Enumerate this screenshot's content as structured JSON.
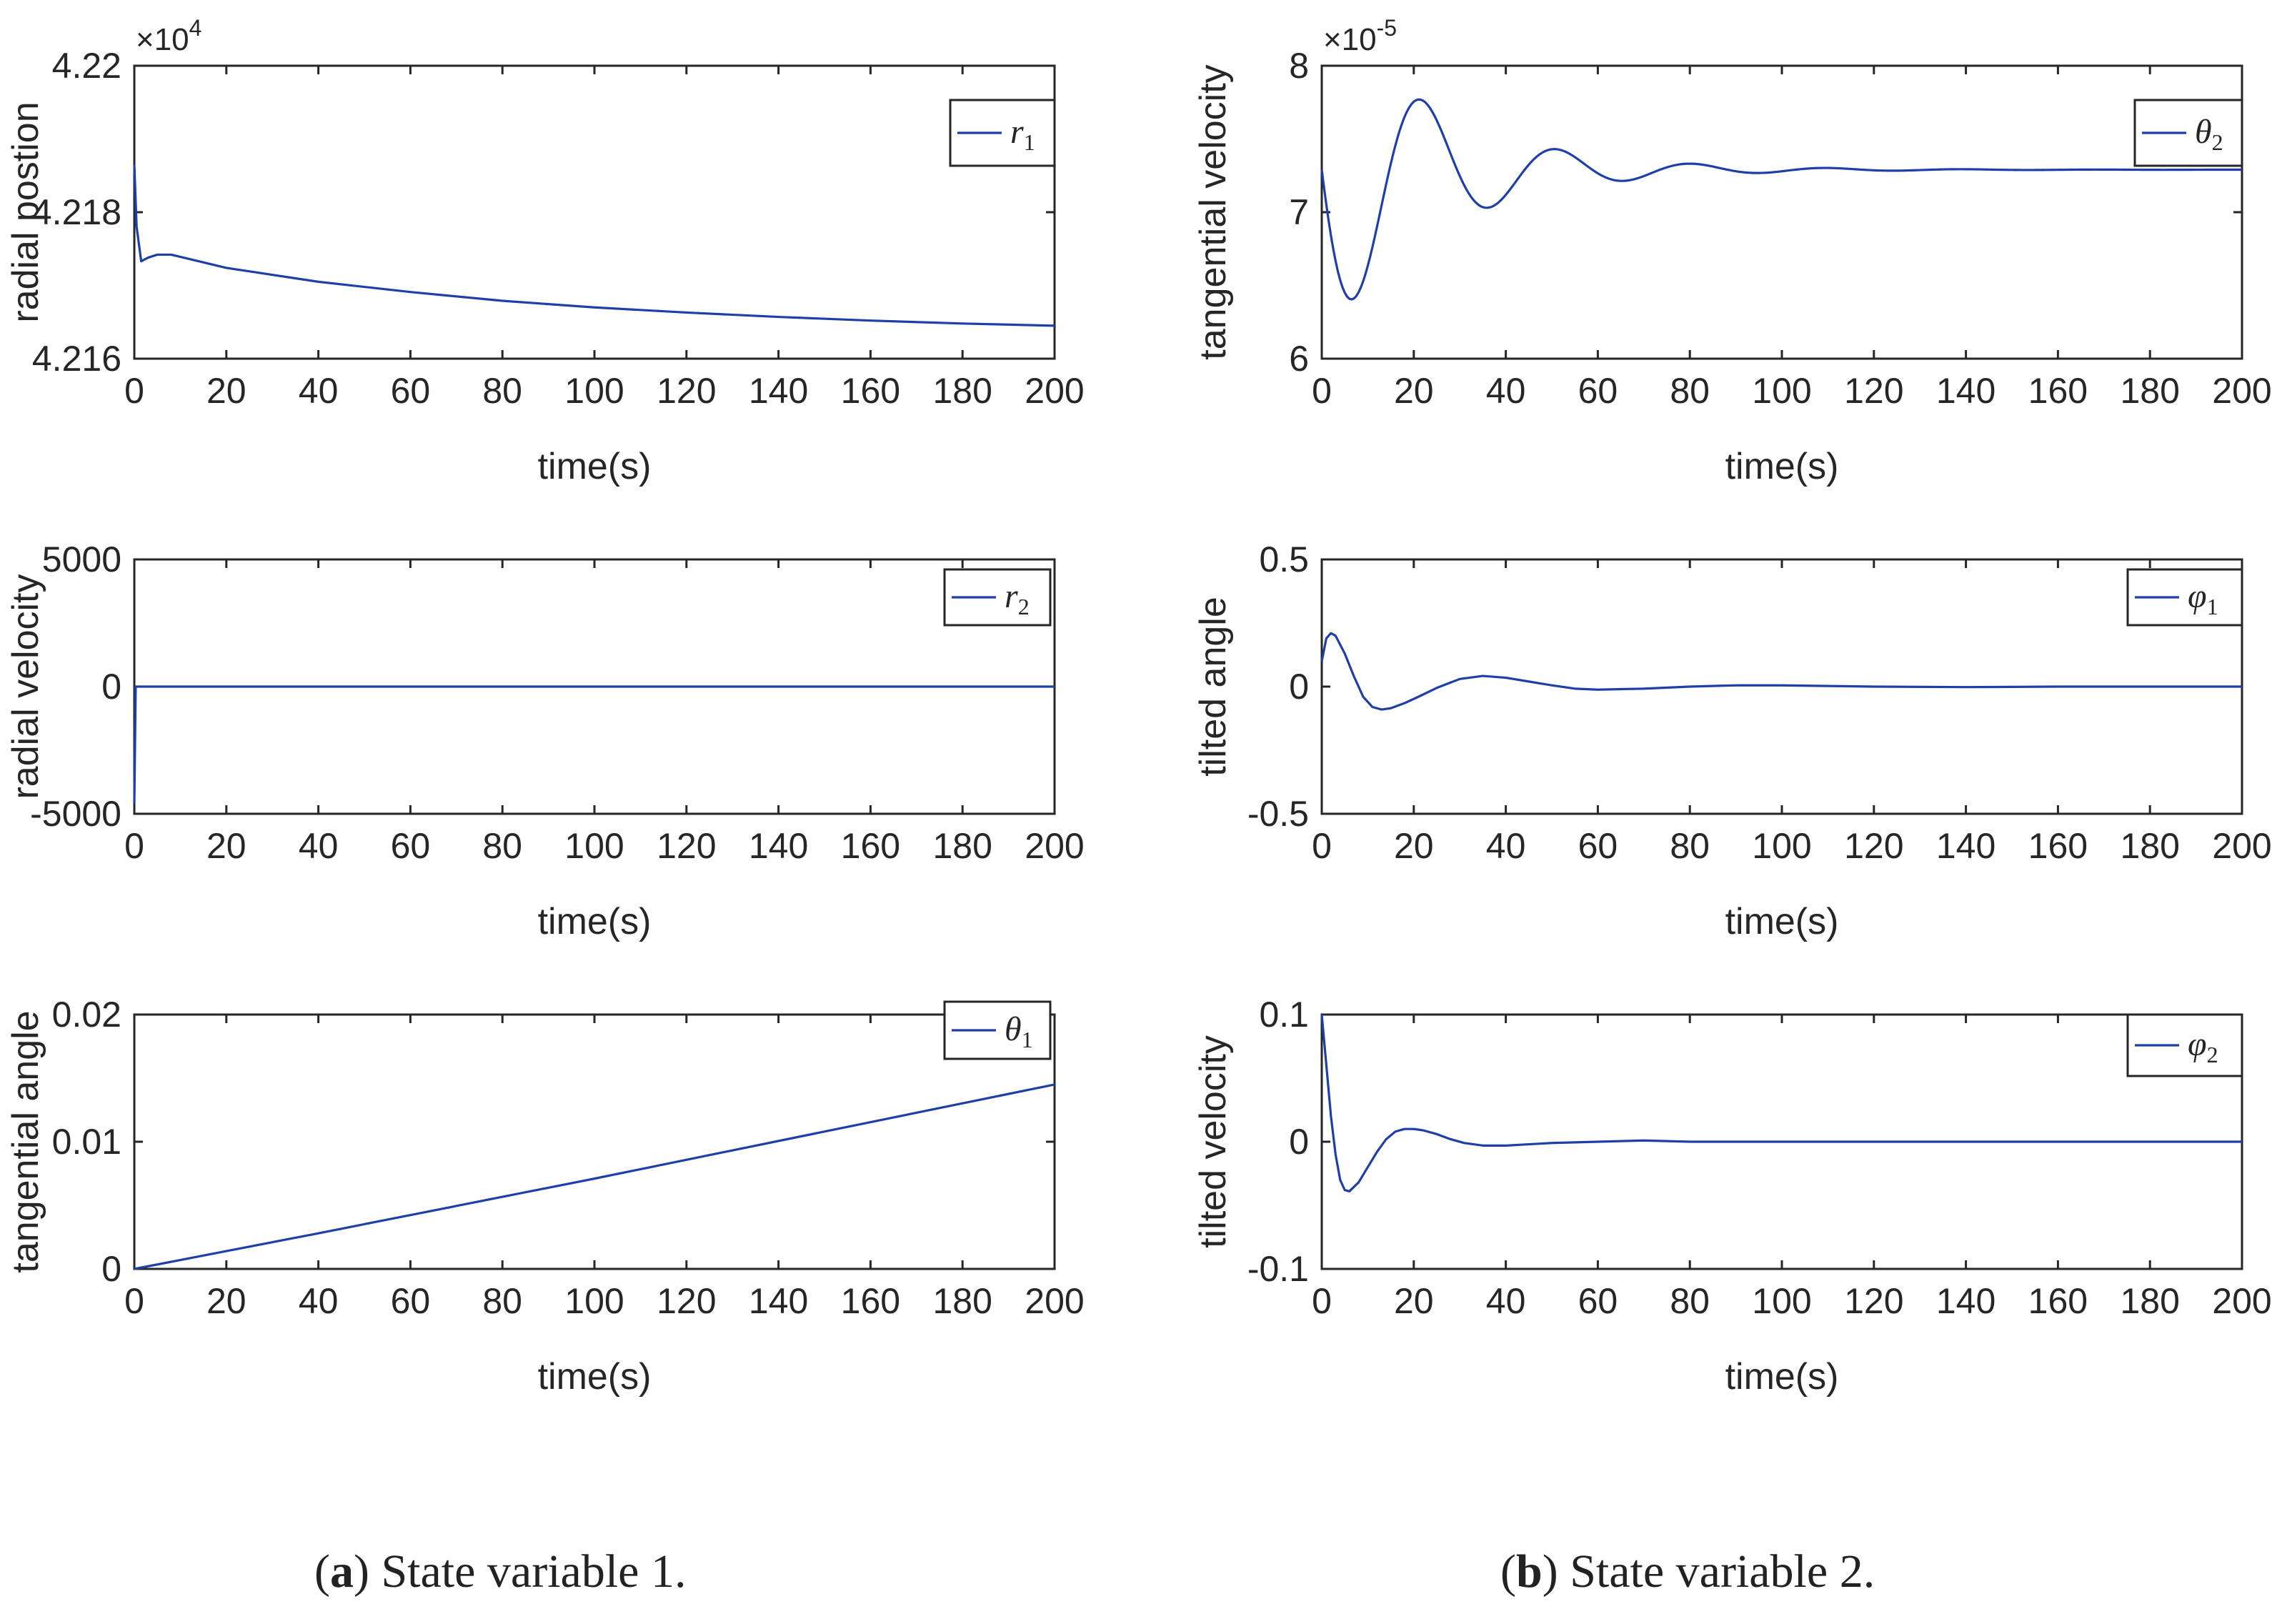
{
  "colors": {
    "line": "#1f3fa8",
    "axis": "#262626"
  },
  "captions": {
    "a": {
      "tag": "a",
      "text": "State variable 1."
    },
    "b": {
      "tag": "b",
      "text": "State variable 2."
    }
  },
  "chart_data": [
    {
      "id": "r1",
      "type": "line",
      "panel": "a-top",
      "xlabel": "time(s)",
      "ylabel": "radial postion",
      "xlim": [
        0,
        200
      ],
      "ylim": [
        4.216,
        4.22
      ],
      "xticks": [
        0,
        20,
        40,
        60,
        80,
        100,
        120,
        140,
        160,
        180,
        200
      ],
      "xtick_labels": [
        "0",
        "20",
        "40",
        "60",
        "80",
        "100",
        "120",
        "140",
        "160",
        "180",
        "200"
      ],
      "yticks": [
        4.216,
        4.218,
        4.22
      ],
      "ytick_labels": [
        "4.216",
        "4.218",
        "4.22"
      ],
      "exponent": {
        "base": "×10",
        "power": "4"
      },
      "legend": {
        "symbol": "r",
        "subscript": "1"
      },
      "series": [
        {
          "name": "r1",
          "x": [
            0,
            0.5,
            1.5,
            3,
            5,
            8,
            12,
            20,
            40,
            60,
            80,
            100,
            120,
            140,
            160,
            180,
            200
          ],
          "y": [
            4.21865,
            4.2178,
            4.21733,
            4.21738,
            4.21742,
            4.21742,
            4.21736,
            4.21724,
            4.21705,
            4.21691,
            4.21679,
            4.2167,
            4.21663,
            4.21657,
            4.21652,
            4.21648,
            4.21645
          ]
        }
      ]
    },
    {
      "id": "theta2",
      "type": "line",
      "panel": "b-top",
      "xlabel": "time(s)",
      "ylabel": "tangential velocity",
      "xlim": [
        0,
        200
      ],
      "ylim": [
        6,
        8
      ],
      "xticks": [
        0,
        20,
        40,
        60,
        80,
        100,
        120,
        140,
        160,
        180,
        200
      ],
      "xtick_labels": [
        "0",
        "20",
        "40",
        "60",
        "80",
        "100",
        "120",
        "140",
        "160",
        "180",
        "200"
      ],
      "yticks": [
        6,
        7,
        8
      ],
      "ytick_labels": [
        "6",
        "7",
        "8"
      ],
      "exponent": {
        "base": "×10",
        "power": "-5"
      },
      "legend": {
        "symbol": "θ",
        "subscript": "2"
      },
      "series": [
        {
          "name": "theta2",
          "damped": {
            "offset": 7.29,
            "amp": -1.18,
            "tau": 24,
            "period": 29.4,
            "phase": 0.0
          },
          "x": [
            0,
            200
          ]
        }
      ]
    },
    {
      "id": "r2",
      "type": "line",
      "panel": "a-mid",
      "xlabel": "time(s)",
      "ylabel": "radial velocity",
      "xlim": [
        0,
        200
      ],
      "ylim": [
        -5000,
        5000
      ],
      "xticks": [
        0,
        20,
        40,
        60,
        80,
        100,
        120,
        140,
        160,
        180,
        200
      ],
      "xtick_labels": [
        "0",
        "20",
        "40",
        "60",
        "80",
        "100",
        "120",
        "140",
        "160",
        "180",
        "200"
      ],
      "yticks": [
        -5000,
        0,
        5000
      ],
      "ytick_labels": [
        "-5000",
        "0",
        "5000"
      ],
      "legend": {
        "symbol": "r",
        "subscript": "2"
      },
      "series": [
        {
          "name": "r2",
          "x": [
            0,
            0,
            0.3,
            200
          ],
          "y": [
            -4600,
            -4600,
            0,
            0
          ]
        }
      ]
    },
    {
      "id": "phi1",
      "type": "line",
      "panel": "b-mid",
      "xlabel": "time(s)",
      "ylabel": "tilted angle",
      "xlim": [
        0,
        200
      ],
      "ylim": [
        -0.5,
        0.5
      ],
      "xticks": [
        0,
        20,
        40,
        60,
        80,
        100,
        120,
        140,
        160,
        180,
        200
      ],
      "xtick_labels": [
        "0",
        "20",
        "40",
        "60",
        "80",
        "100",
        "120",
        "140",
        "160",
        "180",
        "200"
      ],
      "yticks": [
        -0.5,
        0,
        0.5
      ],
      "ytick_labels": [
        "-0.5",
        "0",
        "0.5"
      ],
      "legend": {
        "symbol": "φ",
        "subscript": "1"
      },
      "series": [
        {
          "name": "phi1",
          "x": [
            0,
            1,
            2,
            3,
            5,
            7,
            9,
            11,
            13,
            15,
            18,
            21,
            25,
            30,
            35,
            40,
            45,
            50,
            55,
            60,
            70,
            80,
            90,
            100,
            120,
            140,
            160,
            200
          ],
          "y": [
            0.1,
            0.19,
            0.21,
            0.2,
            0.13,
            0.04,
            -0.04,
            -0.08,
            -0.09,
            -0.085,
            -0.065,
            -0.04,
            -0.005,
            0.03,
            0.042,
            0.035,
            0.02,
            0.005,
            -0.008,
            -0.012,
            -0.008,
            0.0,
            0.005,
            0.005,
            0.0,
            -0.002,
            0.0,
            0.0
          ]
        }
      ]
    },
    {
      "id": "theta1",
      "type": "line",
      "panel": "a-bot",
      "xlabel": "time(s)",
      "ylabel": "tangential angle",
      "xlim": [
        0,
        200
      ],
      "ylim": [
        0,
        0.02
      ],
      "xticks": [
        0,
        20,
        40,
        60,
        80,
        100,
        120,
        140,
        160,
        180,
        200
      ],
      "xtick_labels": [
        "0",
        "20",
        "40",
        "60",
        "80",
        "100",
        "120",
        "140",
        "160",
        "180",
        "200"
      ],
      "yticks": [
        0,
        0.01,
        0.02
      ],
      "ytick_labels": [
        "0",
        "0.01",
        "0.02"
      ],
      "legend": {
        "symbol": "θ",
        "subscript": "1"
      },
      "series": [
        {
          "name": "theta1",
          "x": [
            0,
            10,
            20,
            40,
            100,
            200
          ],
          "y": [
            0,
            0.0007,
            0.0014,
            0.0028,
            0.0071,
            0.0145
          ]
        }
      ]
    },
    {
      "id": "phi2",
      "type": "line",
      "panel": "b-bot",
      "xlabel": "time(s)",
      "ylabel": "tilted velocity",
      "xlim": [
        0,
        200
      ],
      "ylim": [
        -0.1,
        0.1
      ],
      "xticks": [
        0,
        20,
        40,
        60,
        80,
        100,
        120,
        140,
        160,
        180,
        200
      ],
      "xtick_labels": [
        "0",
        "20",
        "40",
        "60",
        "80",
        "100",
        "120",
        "140",
        "160",
        "180",
        "200"
      ],
      "yticks": [
        -0.1,
        0,
        0.1
      ],
      "ytick_labels": [
        "-0.1",
        "0",
        "0.1"
      ],
      "legend": {
        "symbol": "φ",
        "subscript": "2"
      },
      "series": [
        {
          "name": "phi2",
          "x": [
            0,
            1,
            2,
            3,
            4,
            5,
            6,
            8,
            10,
            12,
            14,
            16,
            18,
            20,
            22,
            25,
            28,
            31,
            35,
            40,
            45,
            50,
            60,
            70,
            80,
            100,
            120,
            200
          ],
          "y": [
            0.1,
            0.06,
            0.02,
            -0.01,
            -0.03,
            -0.038,
            -0.039,
            -0.032,
            -0.02,
            -0.008,
            0.002,
            0.008,
            0.01,
            0.01,
            0.009,
            0.006,
            0.002,
            -0.001,
            -0.003,
            -0.003,
            -0.002,
            -0.001,
            0.0,
            0.001,
            0.0,
            0.0,
            0.0,
            0.0
          ]
        }
      ]
    }
  ]
}
